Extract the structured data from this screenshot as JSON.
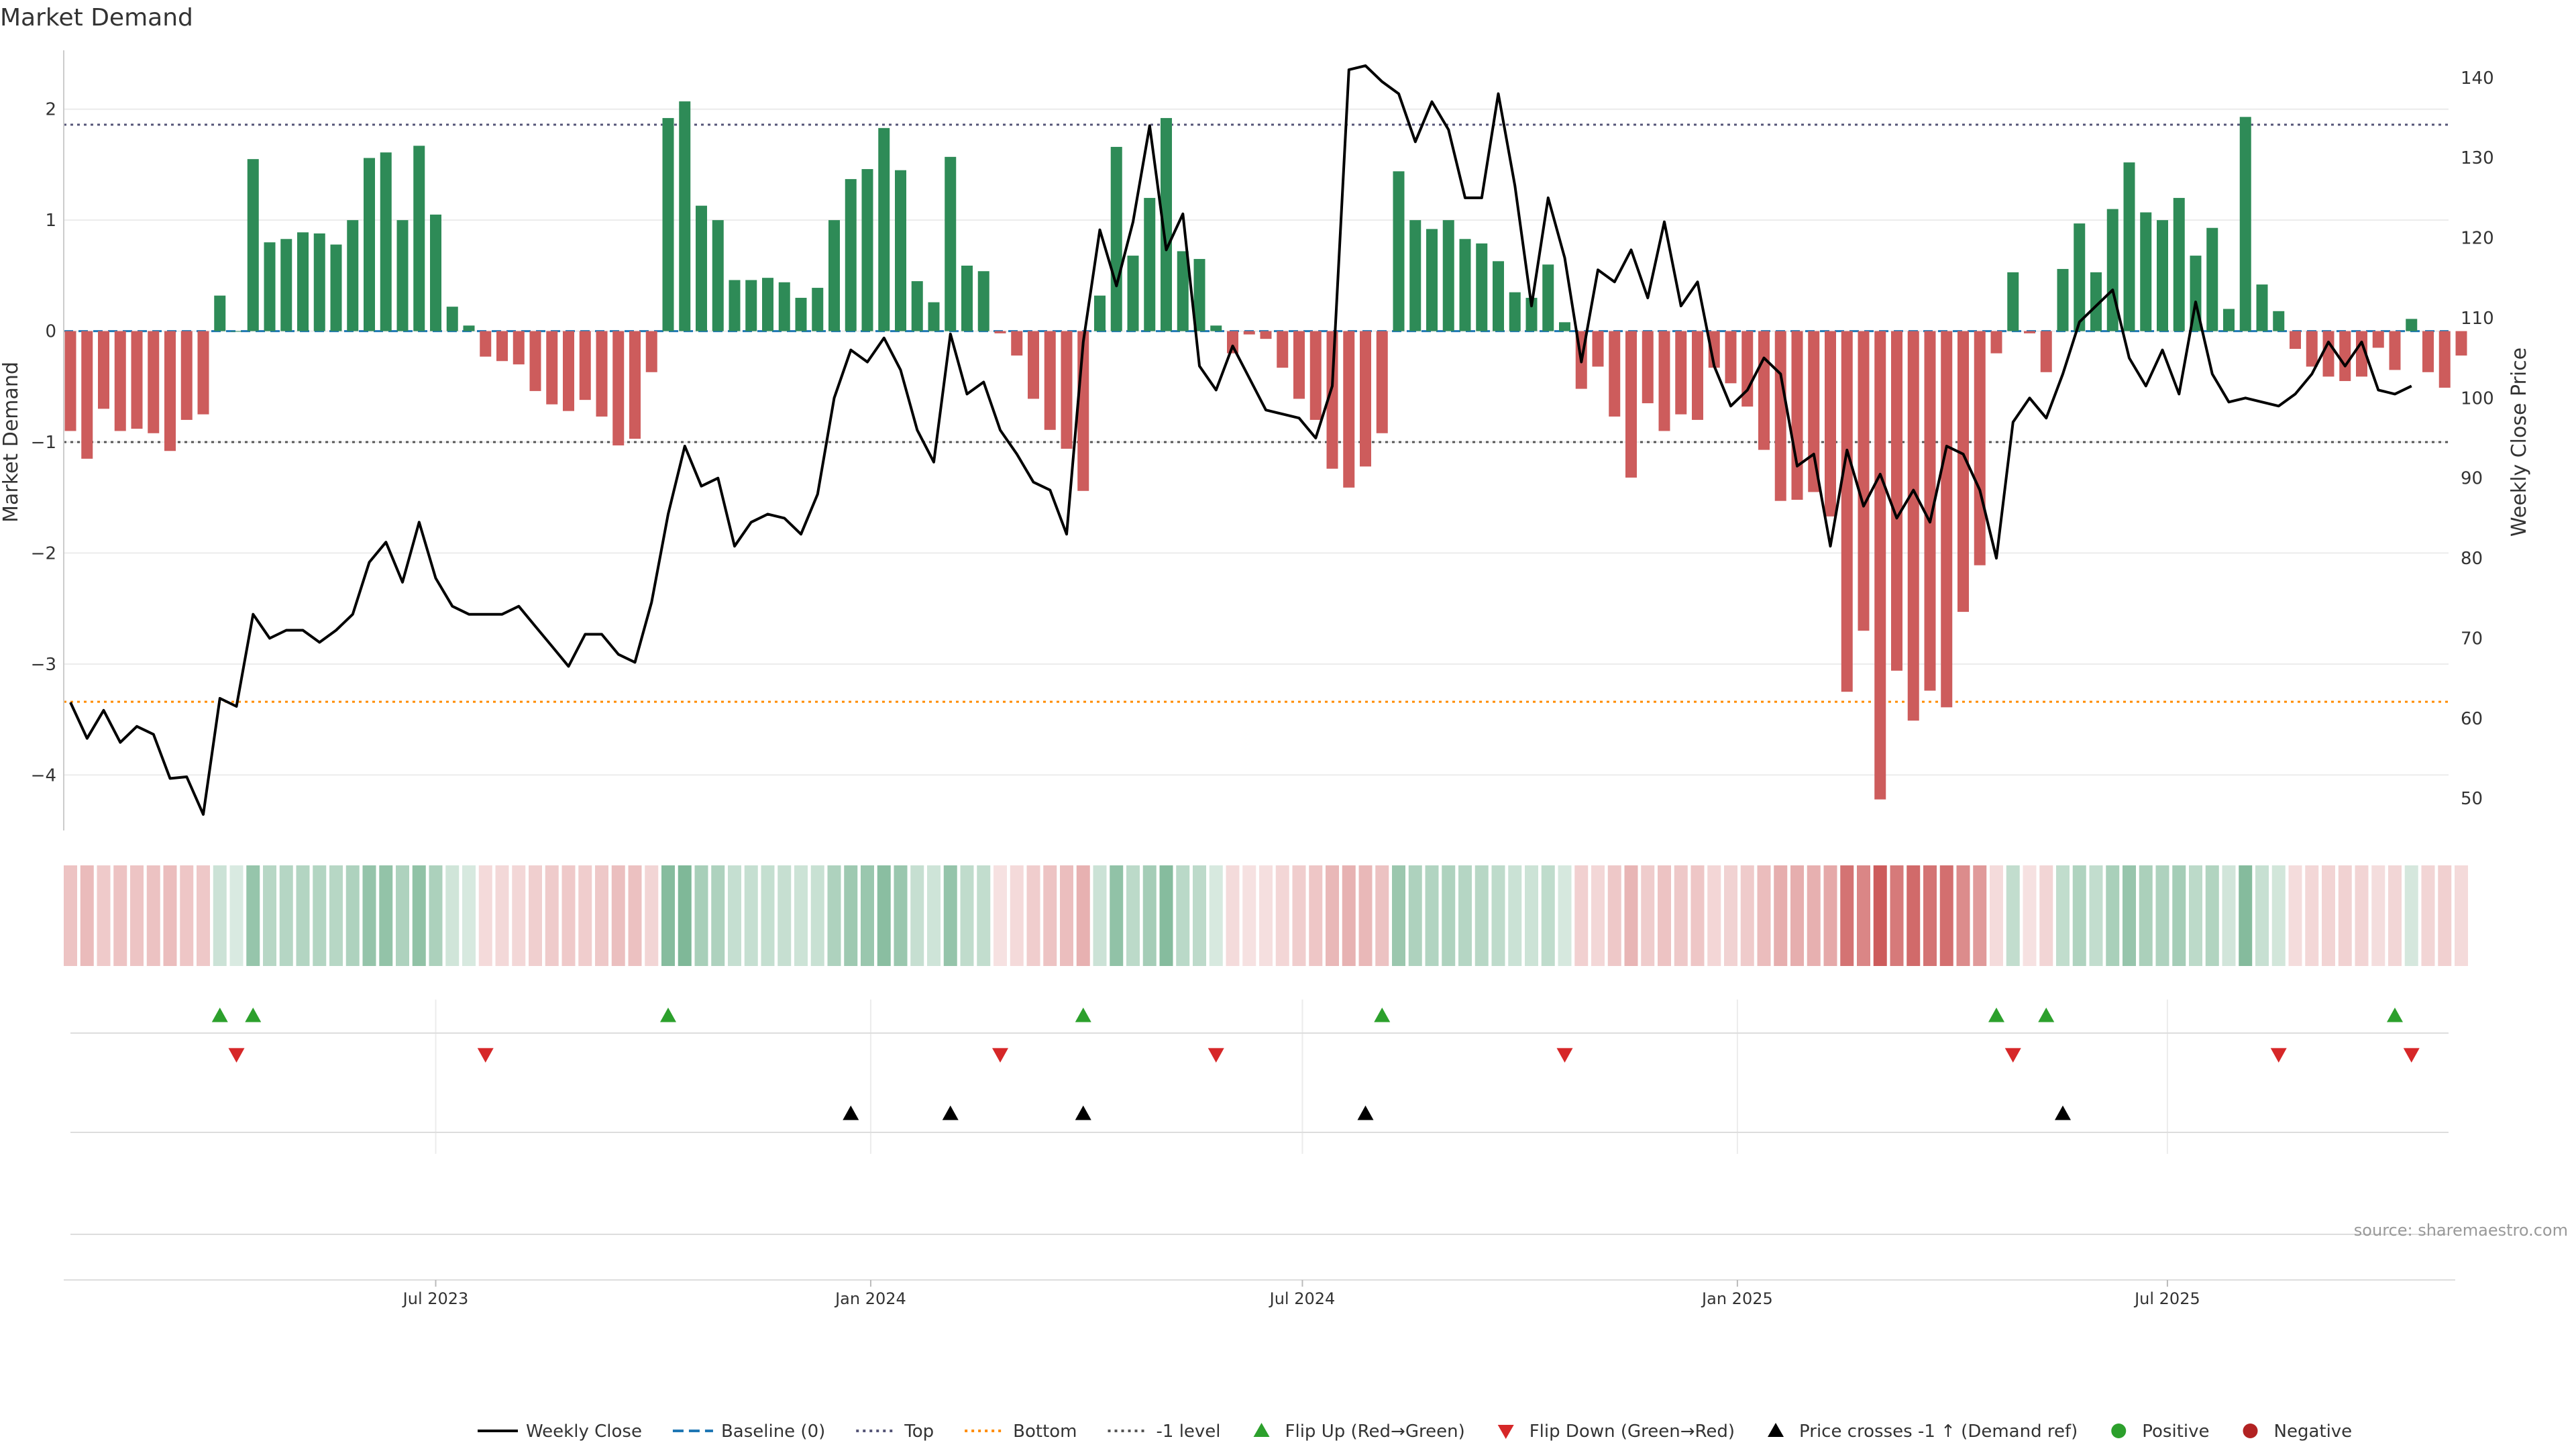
{
  "title": "Market Demand",
  "source": "source: sharemaestro.com",
  "colors": {
    "positive_bar": "#2e8b57",
    "negative_bar": "#cd5c5c",
    "price_line": "#000000",
    "baseline": "#1f77b4",
    "top_level": "#555577",
    "bottom_level": "#ff8c00",
    "minus1_level": "#555555",
    "flip_up": "#2ca02c",
    "flip_down": "#d62728",
    "price_cross": "#000000",
    "positive_dot": "#2ca02c",
    "negative_dot": "#b22222",
    "grid": "#ececec",
    "axis": "#cccccc",
    "text": "#333333"
  },
  "legend": [
    {
      "label": "Weekly Close",
      "marker": "solid-line"
    },
    {
      "label": "Baseline (0)",
      "marker": "dash-line"
    },
    {
      "label": "Top",
      "marker": "dot-line"
    },
    {
      "label": "Bottom",
      "marker": "dot-line"
    },
    {
      "label": "-1 level",
      "marker": "dot-line"
    },
    {
      "label": "Flip Up (Red→Green)",
      "marker": "triangle-up"
    },
    {
      "label": "Flip Down (Green→Red)",
      "marker": "triangle-down"
    },
    {
      "label": "Price crosses -1 ↑ (Demand ref)",
      "marker": "triangle-up"
    },
    {
      "label": "Positive",
      "marker": "circle"
    },
    {
      "label": "Negative",
      "marker": "circle"
    }
  ],
  "chart_data": {
    "type": "bar",
    "title": "Market Demand",
    "ylabel": "Market Demand",
    "y2label": "Weekly Close Price",
    "ylim": [
      -4.5,
      2.5
    ],
    "yticks": [
      2,
      1,
      0,
      -1,
      -2,
      -3,
      -4
    ],
    "ytick_labels": [
      "2",
      "1",
      "0",
      "−1",
      "−2",
      "−3",
      "−4"
    ],
    "y2lim": [
      46,
      143
    ],
    "y2ticks": [
      140,
      130,
      120,
      110,
      100,
      90,
      80,
      70,
      60,
      50
    ],
    "y2tick_labels": [
      "140",
      "130",
      "120",
      "110",
      "100",
      "90",
      "80",
      "70",
      "60",
      "50"
    ],
    "xlabels": [
      {
        "label": "Jul 2023",
        "week": 22
      },
      {
        "label": "Jan 2024",
        "week": 48.2
      },
      {
        "label": "Jul 2024",
        "week": 74.2
      },
      {
        "label": "Jan 2025",
        "week": 100.4
      },
      {
        "label": "Jul 2025",
        "week": 126.3
      }
    ],
    "reference_lines": [
      {
        "name": "Baseline (0)",
        "value": 0
      },
      {
        "name": "Top",
        "value": 1.86
      },
      {
        "name": "Bottom",
        "value": -3.34
      },
      {
        "name": "-1 level",
        "value": -1.0
      }
    ],
    "series": [
      {
        "name": "Market Demand",
        "values": [
          -0.9,
          -1.15,
          -0.7,
          -0.9,
          -0.88,
          -0.92,
          -1.08,
          -0.8,
          -0.75,
          0.32,
          0.0,
          1.55,
          0.8,
          0.83,
          0.89,
          0.88,
          0.78,
          1.0,
          1.56,
          1.61,
          1.0,
          1.67,
          1.05,
          0.22,
          0.05,
          -0.23,
          -0.27,
          -0.3,
          -0.54,
          -0.66,
          -0.72,
          -0.62,
          -0.77,
          -1.03,
          -0.97,
          -0.37,
          1.92,
          2.07,
          1.13,
          1.0,
          0.46,
          0.46,
          0.48,
          0.44,
          0.3,
          0.39,
          1.0,
          1.37,
          1.46,
          1.83,
          1.45,
          0.45,
          0.26,
          1.57,
          0.59,
          0.54,
          -0.02,
          -0.22,
          -0.61,
          -0.89,
          -1.06,
          -1.44,
          0.32,
          1.66,
          0.68,
          1.2,
          1.92,
          0.72,
          0.65,
          0.05,
          -0.2,
          -0.03,
          -0.07,
          -0.33,
          -0.61,
          -0.8,
          -1.24,
          -1.41,
          -1.22,
          -0.92,
          1.44,
          1.0,
          0.92,
          1.0,
          0.83,
          0.79,
          0.63,
          0.35,
          0.3,
          0.6,
          0.08,
          -0.52,
          -0.32,
          -0.77,
          -1.32,
          -0.65,
          -0.9,
          -0.75,
          -0.8,
          -0.33,
          -0.47,
          -0.68,
          -1.07,
          -1.53,
          -1.52,
          -1.45,
          -1.67,
          -3.25,
          -2.7,
          -4.22,
          -3.06,
          -3.51,
          -3.24,
          -3.39,
          -2.53,
          -2.11,
          -0.2,
          0.53,
          -0.02,
          -0.37,
          0.56,
          0.97,
          0.53,
          1.1,
          1.52,
          1.07,
          1.0,
          1.2,
          0.68,
          0.93,
          0.2,
          1.93,
          0.42,
          0.18,
          -0.16,
          -0.32,
          -0.41,
          -0.45,
          -0.41,
          -0.15,
          -0.35,
          0.11,
          -0.37,
          -0.51,
          -0.22
        ]
      },
      {
        "name": "Weekly Close",
        "axis": "right",
        "values": [
          62,
          57.5,
          61,
          57,
          59,
          58,
          52.5,
          52.7,
          48,
          62.5,
          61.5,
          73,
          70,
          71,
          71,
          69.5,
          71,
          73,
          79.5,
          82,
          77,
          84.5,
          77.5,
          74,
          73,
          73,
          73,
          74,
          71.5,
          69,
          66.5,
          70.5,
          70.5,
          68,
          67,
          74.5,
          85.5,
          94,
          89,
          90,
          81.5,
          84.5,
          85.5,
          85,
          83,
          88,
          100,
          106,
          104.5,
          107.5,
          103.5,
          96,
          92,
          108,
          100.5,
          102,
          96,
          93,
          89.5,
          88.5,
          83,
          107,
          121,
          114,
          122,
          134,
          118.5,
          123,
          104,
          101,
          106.5,
          102.5,
          98.5,
          98,
          97.5,
          95,
          101.5,
          141,
          141.5,
          139.5,
          138,
          132,
          137,
          133.5,
          125,
          125,
          138,
          126.5,
          111.5,
          125,
          117.5,
          104.5,
          116,
          114.5,
          118.5,
          112.5,
          122,
          111.5,
          114.5,
          104,
          99,
          101,
          105,
          103,
          91.5,
          93,
          81.5,
          93.5,
          86.5,
          90.5,
          85,
          88.5,
          84.5,
          94,
          93,
          88.5,
          80,
          97,
          100,
          97.5,
          103,
          109.5,
          111.5,
          113.5,
          105,
          101.5,
          106,
          100.5,
          112,
          103,
          99.5,
          100,
          99.5,
          99,
          100.5,
          103,
          107,
          104,
          107,
          101,
          100.5,
          101.5
        ]
      }
    ],
    "heat_strip": {
      "name": "Demand heat strip",
      "uses_series": "Market Demand"
    },
    "events": [
      {
        "name": "Flip Up (Red→Green)",
        "weeks": [
          9,
          11,
          36,
          61,
          79,
          116,
          119,
          140
        ]
      },
      {
        "name": "Flip Down (Green→Red)",
        "weeks": [
          10,
          25,
          56,
          69,
          90,
          117,
          133,
          141
        ]
      },
      {
        "name": "Price crosses -1 ↑ (Demand ref)",
        "weeks": [
          47,
          53,
          61,
          78,
          120
        ]
      }
    ]
  }
}
